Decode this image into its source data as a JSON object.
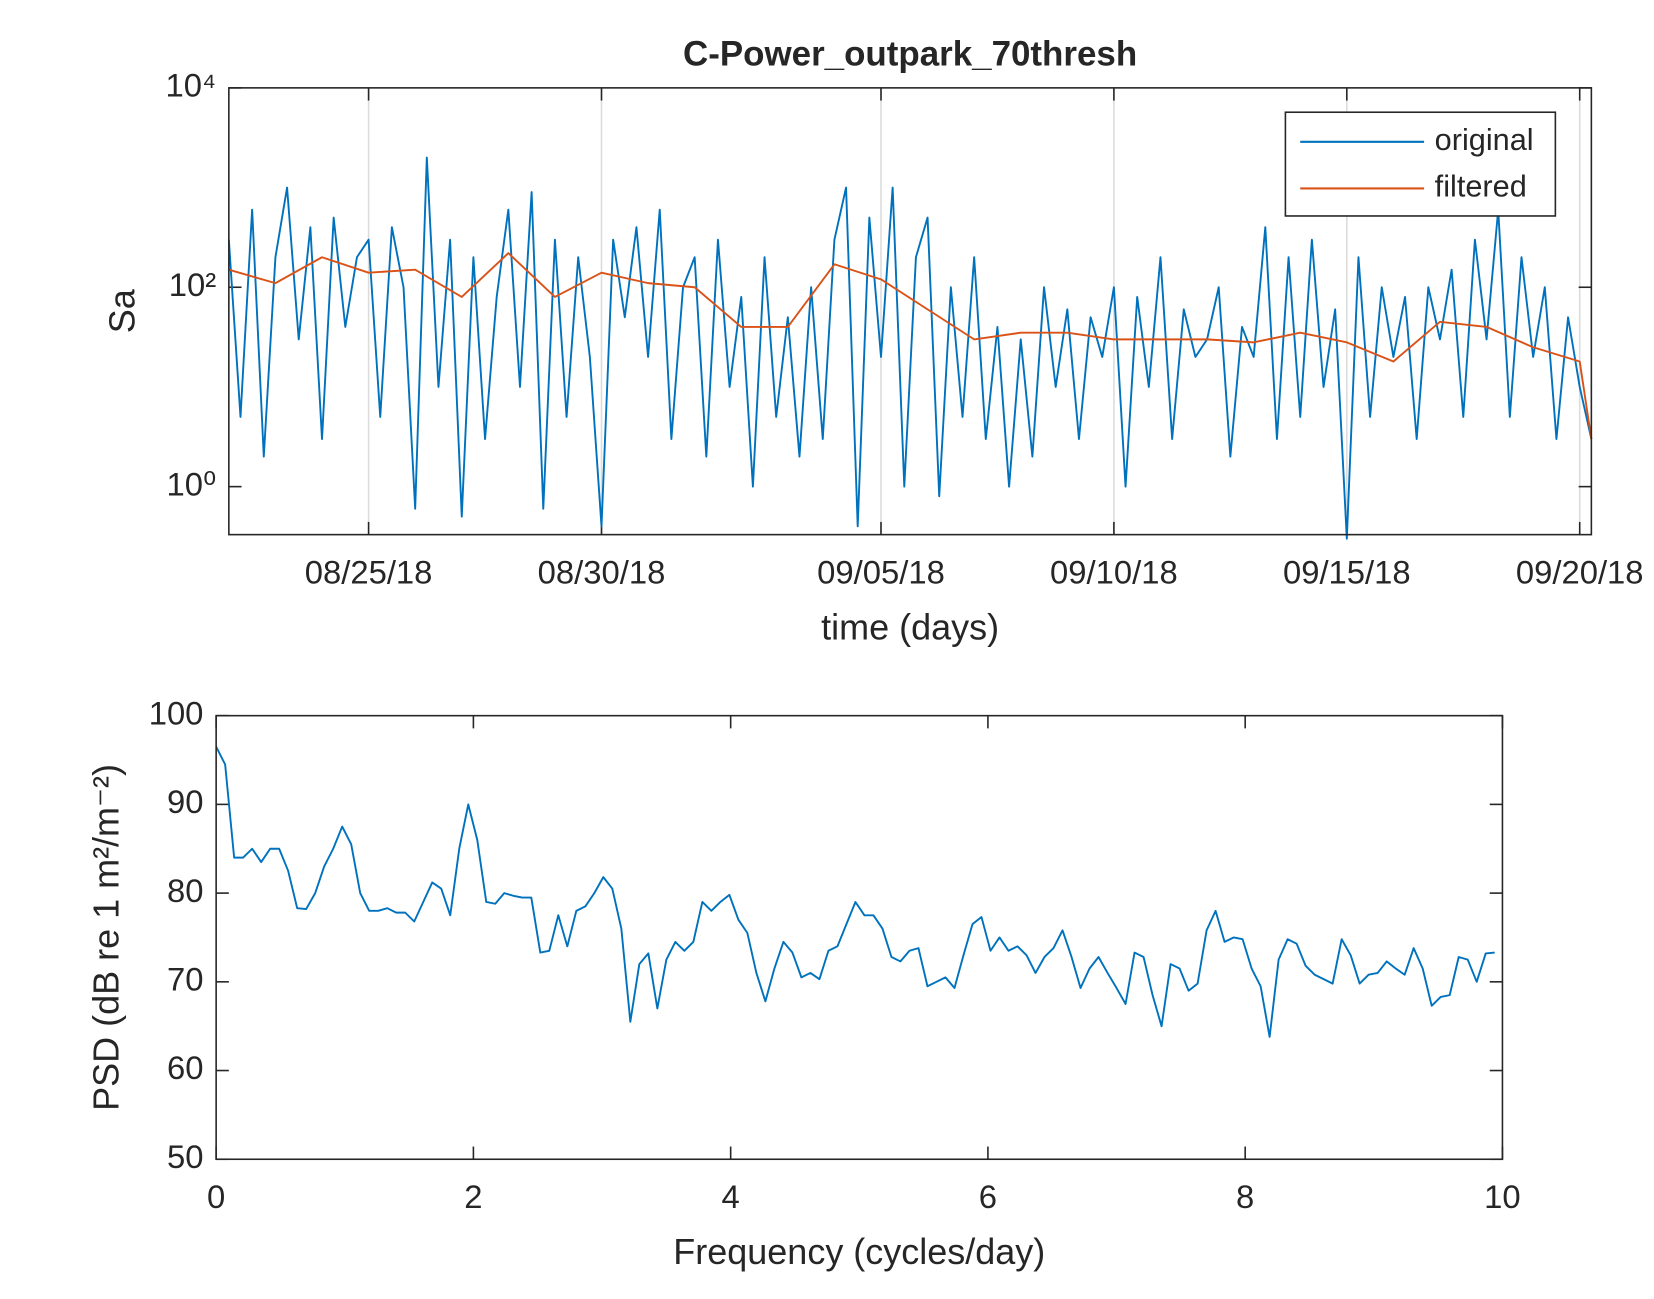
{
  "chart_data": [
    {
      "type": "line",
      "title": "C-Power_outpark_70thresh",
      "xlabel": "time (days)",
      "ylabel": "Sa",
      "yscale": "log",
      "xgrid": true,
      "legend": "northeast",
      "xlim": [
        "2018-08-22T00:00",
        "2018-09-20T06:00"
      ],
      "xticks": [
        {
          "value": "2018-08-25T00:00",
          "label": "08/25/18"
        },
        {
          "value": "2018-08-30T00:00",
          "label": "08/30/18"
        },
        {
          "value": "2018-09-05T00:00",
          "label": "09/05/18"
        },
        {
          "value": "2018-09-10T00:00",
          "label": "09/10/18"
        },
        {
          "value": "2018-09-15T00:00",
          "label": "09/15/18"
        },
        {
          "value": "2018-09-20T00:00",
          "label": "09/20/18"
        }
      ],
      "ylim": [
        0.33,
        10000
      ],
      "yticks": [
        {
          "value": 1,
          "label": "10⁰"
        },
        {
          "value": 100,
          "label": "10²"
        },
        {
          "value": 10000,
          "label": "10⁴"
        }
      ],
      "series": [
        {
          "name": "original",
          "color": "#0072bd",
          "x": [
            "2018-08-22T00:00",
            "2018-08-22T06:00",
            "2018-08-22T12:00",
            "2018-08-22T18:00",
            "2018-08-23T00:00",
            "2018-08-23T06:00",
            "2018-08-23T12:00",
            "2018-08-23T18:00",
            "2018-08-24T00:00",
            "2018-08-24T06:00",
            "2018-08-24T12:00",
            "2018-08-24T18:00",
            "2018-08-25T00:00",
            "2018-08-25T06:00",
            "2018-08-25T12:00",
            "2018-08-25T18:00",
            "2018-08-26T00:00",
            "2018-08-26T06:00",
            "2018-08-26T12:00",
            "2018-08-26T18:00",
            "2018-08-27T00:00",
            "2018-08-27T06:00",
            "2018-08-27T12:00",
            "2018-08-27T18:00",
            "2018-08-28T00:00",
            "2018-08-28T06:00",
            "2018-08-28T12:00",
            "2018-08-28T18:00",
            "2018-08-29T00:00",
            "2018-08-29T06:00",
            "2018-08-29T12:00",
            "2018-08-29T18:00",
            "2018-08-30T00:00",
            "2018-08-30T06:00",
            "2018-08-30T12:00",
            "2018-08-30T18:00",
            "2018-08-31T00:00",
            "2018-08-31T06:00",
            "2018-08-31T12:00",
            "2018-08-31T18:00",
            "2018-09-01T00:00",
            "2018-09-01T06:00",
            "2018-09-01T12:00",
            "2018-09-01T18:00",
            "2018-09-02T00:00",
            "2018-09-02T06:00",
            "2018-09-02T12:00",
            "2018-09-02T18:00",
            "2018-09-03T00:00",
            "2018-09-03T06:00",
            "2018-09-03T12:00",
            "2018-09-03T18:00",
            "2018-09-04T00:00",
            "2018-09-04T06:00",
            "2018-09-04T12:00",
            "2018-09-04T18:00",
            "2018-09-05T00:00",
            "2018-09-05T06:00",
            "2018-09-05T12:00",
            "2018-09-05T18:00",
            "2018-09-06T00:00",
            "2018-09-06T06:00",
            "2018-09-06T12:00",
            "2018-09-06T18:00",
            "2018-09-07T00:00",
            "2018-09-07T06:00",
            "2018-09-07T12:00",
            "2018-09-07T18:00",
            "2018-09-08T00:00",
            "2018-09-08T06:00",
            "2018-09-08T12:00",
            "2018-09-08T18:00",
            "2018-09-09T00:00",
            "2018-09-09T06:00",
            "2018-09-09T12:00",
            "2018-09-09T18:00",
            "2018-09-10T00:00",
            "2018-09-10T06:00",
            "2018-09-10T12:00",
            "2018-09-10T18:00",
            "2018-09-11T00:00",
            "2018-09-11T06:00",
            "2018-09-11T12:00",
            "2018-09-11T18:00",
            "2018-09-12T00:00",
            "2018-09-12T06:00",
            "2018-09-12T12:00",
            "2018-09-12T18:00",
            "2018-09-13T00:00",
            "2018-09-13T06:00",
            "2018-09-13T12:00",
            "2018-09-13T18:00",
            "2018-09-14T00:00",
            "2018-09-14T06:00",
            "2018-09-14T12:00",
            "2018-09-14T18:00",
            "2018-09-15T00:00",
            "2018-09-15T06:00",
            "2018-09-15T12:00",
            "2018-09-15T18:00",
            "2018-09-16T00:00",
            "2018-09-16T06:00",
            "2018-09-16T12:00",
            "2018-09-16T18:00",
            "2018-09-17T00:00",
            "2018-09-17T06:00",
            "2018-09-17T12:00",
            "2018-09-17T18:00",
            "2018-09-18T00:00",
            "2018-09-18T06:00",
            "2018-09-18T12:00",
            "2018-09-18T18:00",
            "2018-09-19T00:00",
            "2018-09-19T06:00",
            "2018-09-19T12:00",
            "2018-09-19T18:00",
            "2018-09-20T00:00",
            "2018-09-20T06:00"
          ],
          "values": [
            300,
            5,
            600,
            2,
            200,
            1000,
            30,
            400,
            3,
            500,
            40,
            200,
            300,
            5,
            400,
            100,
            0.6,
            2000,
            10,
            300,
            0.5,
            200,
            3,
            80,
            600,
            10,
            900,
            0.6,
            300,
            5,
            200,
            20,
            0.4,
            300,
            50,
            400,
            20,
            600,
            3,
            100,
            200,
            2,
            300,
            10,
            80,
            1,
            200,
            5,
            50,
            2,
            100,
            3,
            300,
            1000,
            0.4,
            500,
            20,
            1000,
            1,
            200,
            500,
            0.8,
            100,
            5,
            200,
            3,
            40,
            1,
            30,
            2,
            100,
            10,
            60,
            3,
            50,
            20,
            100,
            1,
            80,
            10,
            200,
            3,
            60,
            20,
            30,
            100,
            2,
            40,
            20,
            400,
            3,
            200,
            5,
            300,
            10,
            60,
            0.3,
            200,
            5,
            100,
            20,
            80,
            3,
            100,
            30,
            150,
            5,
            300,
            30,
            600,
            5,
            200,
            20,
            100,
            3,
            50,
            10,
            3
          ]
        },
        {
          "name": "filtered",
          "color": "#d95319",
          "x": [
            "2018-08-22T00:00",
            "2018-08-23T00:00",
            "2018-08-24T00:00",
            "2018-08-25T00:00",
            "2018-08-26T00:00",
            "2018-08-27T00:00",
            "2018-08-28T00:00",
            "2018-08-29T00:00",
            "2018-08-30T00:00",
            "2018-08-31T00:00",
            "2018-09-01T00:00",
            "2018-09-02T00:00",
            "2018-09-03T00:00",
            "2018-09-04T00:00",
            "2018-09-05T00:00",
            "2018-09-06T00:00",
            "2018-09-07T00:00",
            "2018-09-08T00:00",
            "2018-09-09T00:00",
            "2018-09-10T00:00",
            "2018-09-11T00:00",
            "2018-09-12T00:00",
            "2018-09-13T00:00",
            "2018-09-14T00:00",
            "2018-09-15T00:00",
            "2018-09-16T00:00",
            "2018-09-17T00:00",
            "2018-09-18T00:00",
            "2018-09-19T00:00",
            "2018-09-20T00:00",
            "2018-09-20T06:00"
          ],
          "values": [
            150,
            110,
            200,
            140,
            150,
            80,
            220,
            80,
            140,
            110,
            100,
            40,
            40,
            170,
            120,
            60,
            30,
            35,
            35,
            30,
            30,
            30,
            28,
            35,
            28,
            18,
            45,
            40,
            25,
            18,
            3
          ]
        }
      ]
    },
    {
      "type": "line",
      "xlabel": "Frequency (cycles/day)",
      "ylabel": "PSD (dB re 1 m²/m⁻²)",
      "xlim": [
        0,
        10
      ],
      "xticks": [
        0,
        2,
        4,
        6,
        8,
        10
      ],
      "ylim": [
        50,
        100
      ],
      "yticks": [
        50,
        60,
        70,
        80,
        90,
        100
      ],
      "series": [
        {
          "color": "#0072bd",
          "x": [
            0,
            0.07,
            0.14,
            0.21,
            0.28,
            0.35,
            0.42,
            0.49,
            0.56,
            0.63,
            0.7,
            0.77,
            0.84,
            0.91,
            0.98,
            1.05,
            1.12,
            1.19,
            1.26,
            1.33,
            1.4,
            1.47,
            1.54,
            1.61,
            1.68,
            1.75,
            1.82,
            1.89,
            1.96,
            2.03,
            2.1,
            2.17,
            2.24,
            2.31,
            2.38,
            2.45,
            2.52,
            2.59,
            2.66,
            2.73,
            2.8,
            2.87,
            2.94,
            3.01,
            3.08,
            3.15,
            3.22,
            3.29,
            3.36,
            3.43,
            3.5,
            3.57,
            3.64,
            3.71,
            3.78,
            3.85,
            3.92,
            3.99,
            4.06,
            4.13,
            4.2,
            4.27,
            4.34,
            4.41,
            4.48,
            4.55,
            4.62,
            4.69,
            4.76,
            4.83,
            4.9,
            4.97,
            5.04,
            5.11,
            5.18,
            5.25,
            5.32,
            5.39,
            5.46,
            5.53,
            5.6,
            5.67,
            5.74,
            5.81,
            5.88,
            5.95,
            6.02,
            6.09,
            6.16,
            6.23,
            6.3,
            6.37,
            6.44,
            6.51,
            6.58,
            6.65,
            6.72,
            6.79,
            6.86,
            6.93,
            7,
            7.07,
            7.14,
            7.21,
            7.28,
            7.35,
            7.42,
            7.49,
            7.56,
            7.63,
            7.7,
            7.77,
            7.84,
            7.91,
            7.98,
            8.05,
            8.12,
            8.19,
            8.26,
            8.33,
            8.4,
            8.47,
            8.54,
            8.61,
            8.68,
            8.75,
            8.82,
            8.89,
            8.96,
            9.03,
            9.1,
            9.17,
            9.24,
            9.31,
            9.38,
            9.45,
            9.52,
            9.59,
            9.66,
            9.73,
            9.8,
            9.87,
            9.94
          ],
          "values": [
            96.5,
            94.5,
            84,
            84,
            85,
            83.5,
            85,
            85,
            82.5,
            78.3,
            78.2,
            80,
            83,
            85,
            87.5,
            85.5,
            80,
            78,
            78,
            78.3,
            77.8,
            77.8,
            76.8,
            79,
            81.2,
            80.5,
            77.5,
            85,
            90,
            86,
            79,
            78.8,
            80,
            79.7,
            79.5,
            79.5,
            73.3,
            73.5,
            77.5,
            74,
            78,
            78.5,
            80,
            81.8,
            80.5,
            76,
            65.5,
            72,
            73.2,
            67,
            72.5,
            74.5,
            73.5,
            74.5,
            79,
            78,
            79,
            79.8,
            77,
            75.5,
            71,
            67.8,
            71.5,
            74.5,
            73.3,
            70.5,
            71,
            70.3,
            73.5,
            74,
            76.5,
            79,
            77.5,
            77.5,
            76,
            72.8,
            72.3,
            73.5,
            73.8,
            69.5,
            70,
            70.5,
            69.3,
            73,
            76.5,
            77.3,
            73.5,
            75,
            73.5,
            74,
            73,
            71,
            72.8,
            73.8,
            75.8,
            72.8,
            69.3,
            71.5,
            72.8,
            71,
            69.3,
            67.5,
            73.3,
            72.8,
            68.5,
            65,
            72,
            71.5,
            69,
            69.8,
            75.8,
            78,
            74.5,
            75,
            74.8,
            71.5,
            69.5,
            63.8,
            72.5,
            74.8,
            74.3,
            71.8,
            70.8,
            70.3,
            69.8,
            74.8,
            73,
            69.8,
            70.8,
            71,
            72.3,
            71.5,
            70.8,
            73.8,
            71.5,
            67.3,
            68.3,
            68.5,
            72.8,
            72.5,
            70,
            73.2,
            73.3
          ]
        }
      ]
    }
  ]
}
